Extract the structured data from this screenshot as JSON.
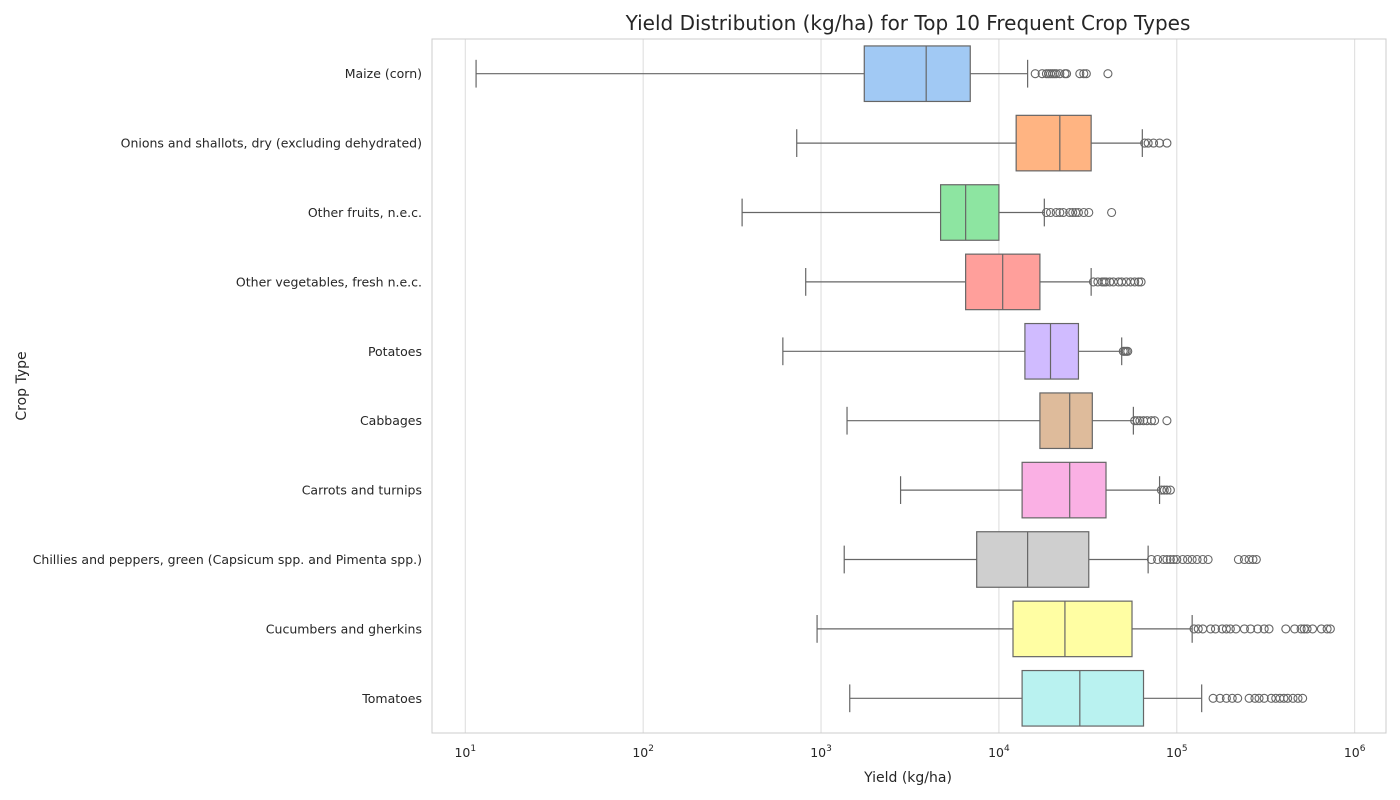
{
  "chart_data": {
    "type": "boxplot",
    "orientation": "horizontal",
    "title": "Yield Distribution (kg/ha) for Top 10 Frequent Crop Types",
    "xlabel": "Yield (kg/ha)",
    "ylabel": "Crop Type",
    "xscale": "log",
    "xlim": [
      6.5,
      1500000
    ],
    "x_ticks": [
      {
        "value": 10,
        "base": "10",
        "exp": "1"
      },
      {
        "value": 100,
        "base": "10",
        "exp": "2"
      },
      {
        "value": 1000,
        "base": "10",
        "exp": "3"
      },
      {
        "value": 10000,
        "base": "10",
        "exp": "4"
      },
      {
        "value": 100000,
        "base": "10",
        "exp": "5"
      },
      {
        "value": 1000000,
        "base": "10",
        "exp": "6"
      }
    ],
    "grid": "vertical",
    "series": [
      {
        "category": "Maize (corn)",
        "color": "#a1c9f4",
        "whisker_low": 11.5,
        "q1": 1750,
        "median": 3900,
        "q3": 6900,
        "whisker_high": 14500,
        "outliers": [
          16000,
          17500,
          18500,
          19000,
          19500,
          20000,
          20500,
          21000,
          22000,
          23500,
          24000,
          28500,
          30000,
          31000,
          41000
        ]
      },
      {
        "category": "Onions and shallots, dry (excluding dehydrated)",
        "color": "#ffb482",
        "whisker_low": 730,
        "q1": 12500,
        "median": 22000,
        "q3": 33000,
        "whisker_high": 64000,
        "outliers": [
          66000,
          69000,
          74000,
          80000,
          88000
        ]
      },
      {
        "category": "Other fruits, n.e.c.",
        "color": "#8de5a1",
        "whisker_low": 360,
        "q1": 4700,
        "median": 6500,
        "q3": 10000,
        "whisker_high": 18000,
        "outliers": [
          18500,
          19500,
          21000,
          22000,
          23000,
          25000,
          26000,
          27000,
          28000,
          30000,
          32000,
          43000
        ]
      },
      {
        "category": "Other vegetables, fresh n.e.c.",
        "color": "#ff9f9b",
        "whisker_low": 820,
        "q1": 6500,
        "median": 10500,
        "q3": 17000,
        "whisker_high": 33000,
        "outliers": [
          34000,
          36000,
          38000,
          39000,
          40000,
          42000,
          44000,
          47000,
          49000,
          52000,
          55000,
          58000,
          61000,
          63000
        ]
      },
      {
        "category": "Potatoes",
        "color": "#d0bbff",
        "whisker_low": 610,
        "q1": 14000,
        "median": 19500,
        "q3": 28000,
        "whisker_high": 49000,
        "outliers": [
          50000,
          51000,
          52000,
          53000
        ]
      },
      {
        "category": "Cabbages",
        "color": "#debb9b",
        "whisker_low": 1400,
        "q1": 17000,
        "median": 25000,
        "q3": 33500,
        "whisker_high": 57000,
        "outliers": [
          58000,
          60000,
          62000,
          65000,
          68000,
          72000,
          75000,
          88000
        ]
      },
      {
        "category": "Carrots and turnips",
        "color": "#fab0e4",
        "whisker_low": 2800,
        "q1": 13500,
        "median": 25000,
        "q3": 40000,
        "whisker_high": 80000,
        "outliers": [
          82000,
          85000,
          88000,
          92000
        ]
      },
      {
        "category": "Chillies and peppers, green (Capsicum spp. and Pimenta spp.)",
        "color": "#cfcfcf",
        "whisker_low": 1350,
        "q1": 7500,
        "median": 14500,
        "q3": 32000,
        "whisker_high": 69000,
        "outliers": [
          72000,
          78000,
          84000,
          88000,
          92000,
          96000,
          100000,
          108000,
          115000,
          122000,
          130000,
          140000,
          150000,
          222000,
          240000,
          255000,
          268000,
          280000
        ]
      },
      {
        "category": "Cucumbers and gherkins",
        "color": "#fffea3",
        "whisker_low": 950,
        "q1": 12000,
        "median": 23500,
        "q3": 56000,
        "whisker_high": 122000,
        "outliers": [
          125000,
          132000,
          140000,
          155000,
          165000,
          180000,
          190000,
          200000,
          215000,
          240000,
          260000,
          285000,
          310000,
          330000,
          410000,
          460000,
          500000,
          520000,
          540000,
          580000,
          650000,
          700000,
          730000
        ]
      },
      {
        "category": "Tomatoes",
        "color": "#b9f2f0",
        "whisker_low": 1450,
        "q1": 13500,
        "median": 28500,
        "q3": 65000,
        "whisker_high": 138000,
        "outliers": [
          160000,
          175000,
          190000,
          205000,
          220000,
          255000,
          275000,
          290000,
          310000,
          340000,
          360000,
          380000,
          400000,
          420000,
          450000,
          480000,
          510000
        ]
      }
    ]
  }
}
